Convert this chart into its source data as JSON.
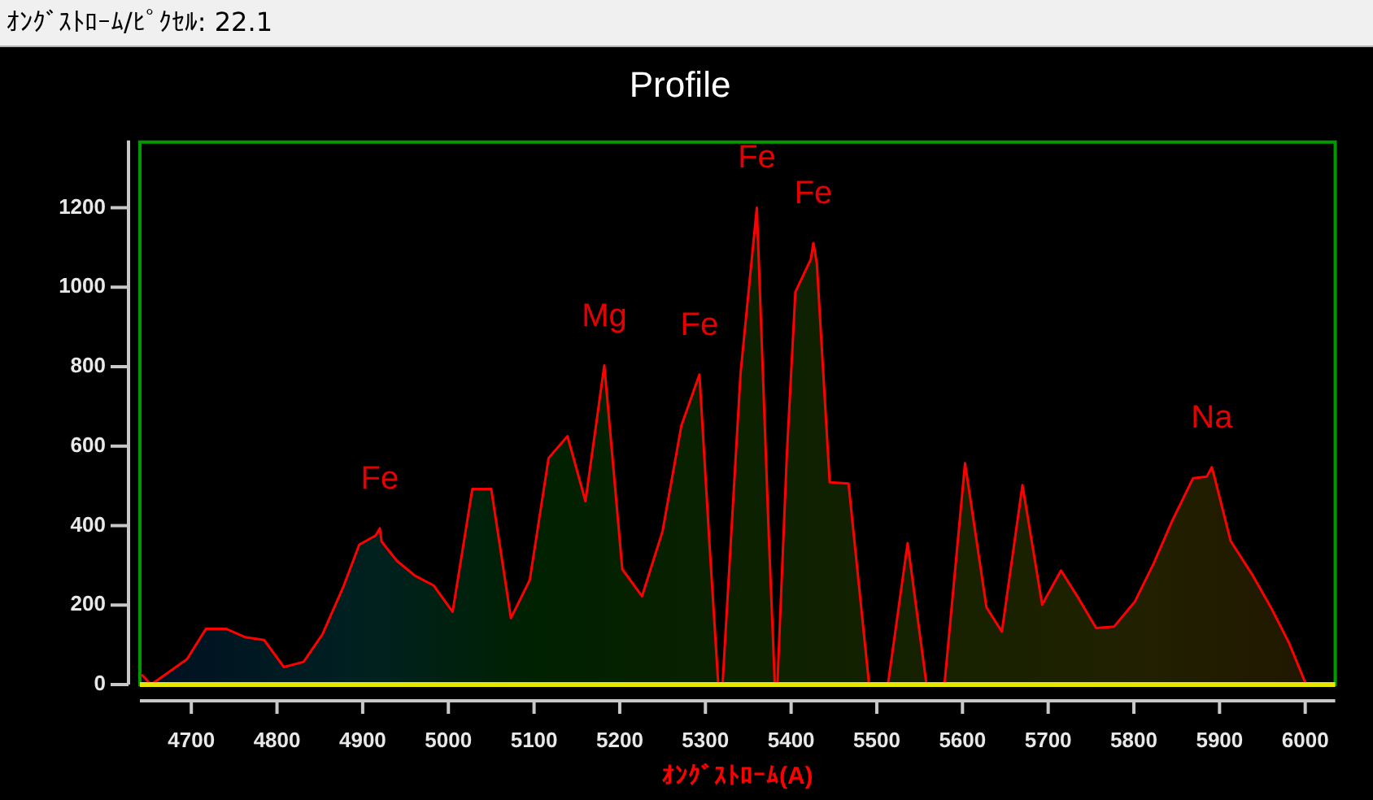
{
  "chart_data": {
    "type": "area",
    "title": "Profile",
    "xlabel": "ｵﾝｸﾞｽﾄﾛｰﾑ(A)",
    "x": [
      4642,
      4653,
      4673,
      4695,
      4717,
      4741,
      4763,
      4785,
      4808,
      4831,
      4853,
      4878,
      4896,
      4915,
      4920,
      4922,
      4940,
      4961,
      4983,
      5005,
      5028,
      5050,
      5073,
      5095,
      5117,
      5139,
      5160,
      5182,
      5203,
      5226,
      5250,
      5272,
      5293,
      5305,
      5315,
      5320,
      5341,
      5360,
      5374,
      5381,
      5384,
      5395,
      5405,
      5423,
      5426,
      5430,
      5445,
      5467,
      5491,
      5513,
      5536,
      5558,
      5579,
      5603,
      5628,
      5646,
      5670,
      5693,
      5715,
      5736,
      5756,
      5777,
      5801,
      5823,
      5845,
      5869,
      5885,
      5891,
      5894,
      5913,
      5938,
      5960,
      5981,
      6001
    ],
    "series": [
      {
        "color": "#ff0000",
        "values": [
          25,
          0,
          30,
          64,
          140,
          140,
          119,
          112,
          44,
          57,
          126,
          249,
          352,
          375,
          393,
          360,
          311,
          274,
          249,
          183,
          492,
          492,
          167,
          263,
          570,
          625,
          461,
          803,
          290,
          222,
          386,
          652,
          780,
          345,
          0,
          0,
          783,
          1200,
          372,
          0,
          0,
          577,
          988,
          1070,
          1111,
          1060,
          509,
          506,
          0,
          0,
          356,
          0,
          0,
          557,
          194,
          133,
          502,
          201,
          287,
          215,
          142,
          146,
          208,
          304,
          413,
          519,
          523,
          547,
          523,
          361,
          277,
          194,
          105,
          0
        ]
      }
    ],
    "xlim": [
      4640,
      6035
    ],
    "ylim": [
      0,
      1365
    ],
    "xticks": [
      4700,
      4800,
      4900,
      5000,
      5100,
      5200,
      5300,
      5400,
      5500,
      5600,
      5700,
      5800,
      5900,
      6000
    ],
    "yticks": [
      0,
      200,
      400,
      600,
      800,
      1000,
      1200
    ],
    "ref_lines": [
      {
        "axis": "y",
        "value": 0,
        "color": "#e6e600"
      }
    ],
    "annotations": [
      "ｵﾝｸﾞｽﾄﾛｰﾑ/ﾋﾟｸｾﾙ: 22.1",
      {
        "text": "Fe",
        "x": 4920,
        "y": 393
      },
      {
        "text": "Mg",
        "x": 5182,
        "y": 803
      },
      {
        "text": "Fe",
        "x": 5293,
        "y": 780
      },
      {
        "text": "Fe",
        "x": 5360,
        "y": 1200
      },
      {
        "text": "Fe",
        "x": 5426,
        "y": 1111
      },
      {
        "text": "Na",
        "x": 5891,
        "y": 547
      }
    ]
  }
}
